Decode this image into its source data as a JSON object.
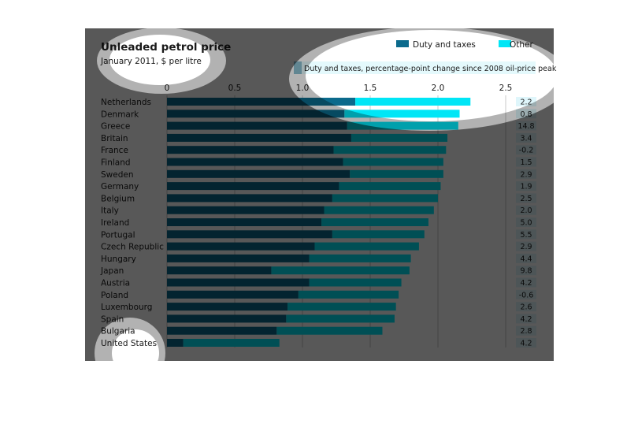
{
  "chart_data": {
    "type": "bar",
    "stacked": true,
    "orientation": "horizontal",
    "title": "Unleaded petrol price",
    "subtitle": "January 2011, $ per litre",
    "annotation_header": "Duty and taxes, percentage-point change since 2008 oil-price peak",
    "xlim": [
      0,
      2.5
    ],
    "xticks": [
      "0",
      "0.5",
      "1.0",
      "1.5",
      "2.0",
      "2.5"
    ],
    "grid": true,
    "legend_position": "top-right",
    "categories": [
      "Netherlands",
      "Denmark",
      "Greece",
      "Britain",
      "France",
      "Finland",
      "Sweden",
      "Germany",
      "Belgium",
      "Italy",
      "Ireland",
      "Portugal",
      "Czech Republic",
      "Hungary",
      "Japan",
      "Austria",
      "Poland",
      "Luxembourg",
      "Spain",
      "Bulgaria",
      "United States"
    ],
    "series": [
      {
        "name": "Duty and taxes",
        "color": "#0b6a8c",
        "values": [
          1.39,
          1.31,
          1.33,
          1.36,
          1.23,
          1.3,
          1.35,
          1.27,
          1.22,
          1.16,
          1.14,
          1.22,
          1.09,
          1.05,
          0.77,
          1.05,
          0.97,
          0.89,
          0.88,
          0.81,
          0.12
        ]
      },
      {
        "name": "Other",
        "color": "#00e6f6",
        "values": [
          0.85,
          0.85,
          0.82,
          0.71,
          0.83,
          0.74,
          0.69,
          0.75,
          0.78,
          0.81,
          0.79,
          0.68,
          0.77,
          0.75,
          1.02,
          0.68,
          0.74,
          0.8,
          0.8,
          0.78,
          0.71
        ]
      }
    ],
    "duty_change_labels": [
      "2.2",
      "0.8",
      "14.8",
      "3.4",
      "-0.2",
      "1.5",
      "2.9",
      "1.9",
      "2.5",
      "2.0",
      "5.0",
      "5.5",
      "2.9",
      "4.4",
      "9.8",
      "4.2",
      "-0.6",
      "2.6",
      "4.2",
      "2.8",
      "4.2"
    ]
  }
}
